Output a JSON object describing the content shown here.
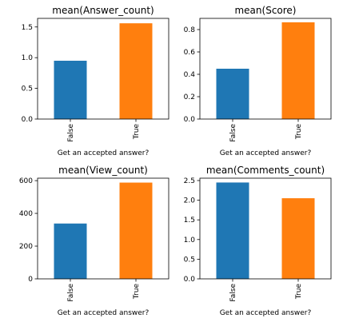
{
  "chart_data": [
    {
      "type": "bar",
      "title": "mean(Answer_count)",
      "xlabel": "Get an accepted answer?",
      "ylabel": "",
      "categories": [
        "False",
        "True"
      ],
      "values": [
        0.95,
        1.56
      ],
      "ylim": [
        0,
        1.64
      ],
      "yticks": [
        0.0,
        0.5,
        1.0,
        1.5
      ],
      "ytick_labels": [
        "0.0",
        "0.5",
        "1.0",
        "1.5"
      ],
      "colors": [
        "#1f77b4",
        "#ff7f0e"
      ],
      "grid": false,
      "legend": "none"
    },
    {
      "type": "bar",
      "title": "mean(Score)",
      "xlabel": "Get an accepted answer?",
      "ylabel": "",
      "categories": [
        "False",
        "True"
      ],
      "values": [
        0.45,
        0.865
      ],
      "ylim": [
        0,
        0.9
      ],
      "yticks": [
        0.0,
        0.2,
        0.4,
        0.6,
        0.8
      ],
      "ytick_labels": [
        "0.0",
        "0.2",
        "0.4",
        "0.6",
        "0.8"
      ],
      "colors": [
        "#1f77b4",
        "#ff7f0e"
      ],
      "grid": false,
      "legend": "none"
    },
    {
      "type": "bar",
      "title": "mean(View_count)",
      "xlabel": "Get an accepted answer?",
      "ylabel": "",
      "categories": [
        "False",
        "True"
      ],
      "values": [
        338,
        588
      ],
      "ylim": [
        0,
        615
      ],
      "yticks": [
        0,
        200,
        400,
        600
      ],
      "ytick_labels": [
        "0",
        "200",
        "400",
        "600"
      ],
      "colors": [
        "#1f77b4",
        "#ff7f0e"
      ],
      "grid": false,
      "legend": "none"
    },
    {
      "type": "bar",
      "title": "mean(Comments_count)",
      "xlabel": "Get an accepted answer?",
      "ylabel": "",
      "categories": [
        "False",
        "True"
      ],
      "values": [
        2.45,
        2.05
      ],
      "ylim": [
        0,
        2.56
      ],
      "yticks": [
        0.0,
        0.5,
        1.0,
        1.5,
        2.0,
        2.5
      ],
      "ytick_labels": [
        "0.0",
        "0.5",
        "1.0",
        "1.5",
        "2.0",
        "2.5"
      ],
      "colors": [
        "#1f77b4",
        "#ff7f0e"
      ],
      "grid": false,
      "legend": "none"
    }
  ]
}
